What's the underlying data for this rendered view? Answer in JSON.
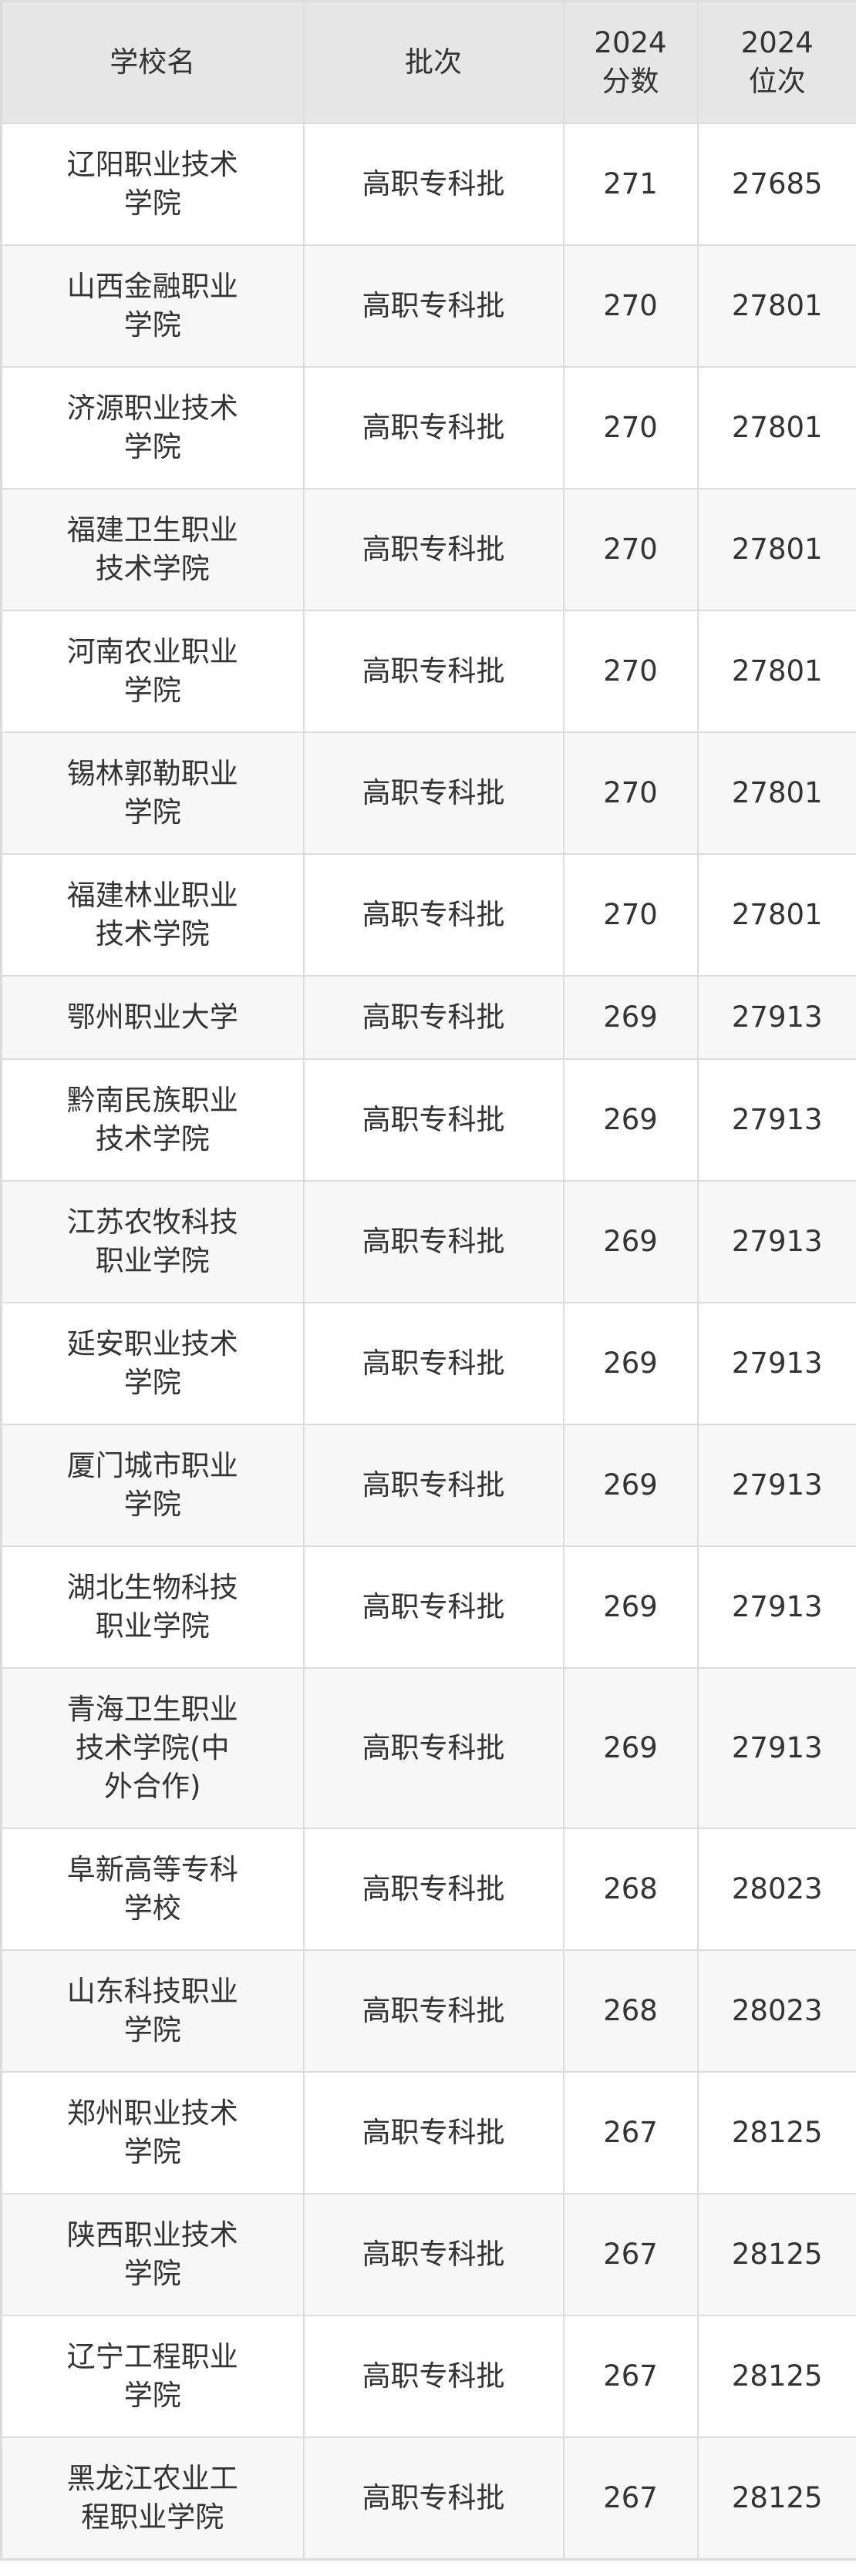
{
  "table": {
    "headers": {
      "school": "学校名",
      "batch": "批次",
      "score": [
        "2024",
        "分数"
      ],
      "rank": [
        "2024",
        "位次"
      ]
    },
    "rows": [
      {
        "school": "辽阳职业技术学院",
        "batch": "高职专科批",
        "score": "271",
        "rank": "27685"
      },
      {
        "school": "山西金融职业学院",
        "batch": "高职专科批",
        "score": "270",
        "rank": "27801"
      },
      {
        "school": "济源职业技术学院",
        "batch": "高职专科批",
        "score": "270",
        "rank": "27801"
      },
      {
        "school": "福建卫生职业技术学院",
        "batch": "高职专科批",
        "score": "270",
        "rank": "27801"
      },
      {
        "school": "河南农业职业学院",
        "batch": "高职专科批",
        "score": "270",
        "rank": "27801"
      },
      {
        "school": "锡林郭勒职业学院",
        "batch": "高职专科批",
        "score": "270",
        "rank": "27801"
      },
      {
        "school": "福建林业职业技术学院",
        "batch": "高职专科批",
        "score": "270",
        "rank": "27801"
      },
      {
        "school": "鄂州职业大学",
        "batch": "高职专科批",
        "score": "269",
        "rank": "27913"
      },
      {
        "school": "黔南民族职业技术学院",
        "batch": "高职专科批",
        "score": "269",
        "rank": "27913"
      },
      {
        "school": "江苏农牧科技职业学院",
        "batch": "高职专科批",
        "score": "269",
        "rank": "27913"
      },
      {
        "school": "延安职业技术学院",
        "batch": "高职专科批",
        "score": "269",
        "rank": "27913"
      },
      {
        "school": "厦门城市职业学院",
        "batch": "高职专科批",
        "score": "269",
        "rank": "27913"
      },
      {
        "school": "湖北生物科技职业学院",
        "batch": "高职专科批",
        "score": "269",
        "rank": "27913"
      },
      {
        "school": "青海卫生职业技术学院(中外合作)",
        "batch": "高职专科批",
        "score": "269",
        "rank": "27913"
      },
      {
        "school": "阜新高等专科学校",
        "batch": "高职专科批",
        "score": "268",
        "rank": "28023"
      },
      {
        "school": "山东科技职业学院",
        "batch": "高职专科批",
        "score": "268",
        "rank": "28023"
      },
      {
        "school": "郑州职业技术学院",
        "batch": "高职专科批",
        "score": "267",
        "rank": "28125"
      },
      {
        "school": "陕西职业技术学院",
        "batch": "高职专科批",
        "score": "267",
        "rank": "28125"
      },
      {
        "school": "辽宁工程职业学院",
        "batch": "高职专科批",
        "score": "267",
        "rank": "28125"
      },
      {
        "school": "黑龙江农业工程职业学院",
        "batch": "高职专科批",
        "score": "267",
        "rank": "28125"
      }
    ]
  }
}
